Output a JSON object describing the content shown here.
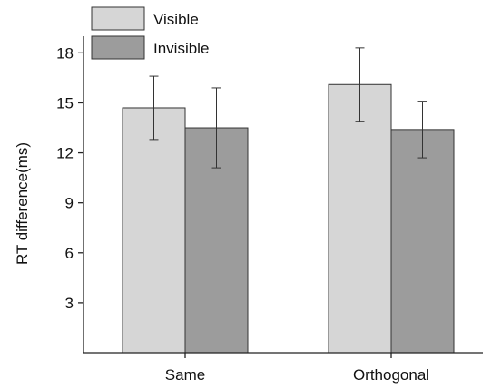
{
  "chart_data": {
    "type": "bar",
    "categories": [
      "Same",
      "Orthogonal"
    ],
    "series": [
      {
        "name": "Visible",
        "color": "#d6d6d6",
        "values": [
          14.7,
          16.1
        ],
        "error": [
          1.9,
          2.2
        ]
      },
      {
        "name": "Invisible",
        "color": "#9c9c9c",
        "values": [
          13.5,
          13.4
        ],
        "error": [
          2.4,
          1.7
        ]
      }
    ],
    "title": "",
    "xlabel": "",
    "ylabel": "RT difference(ms)",
    "ylim": [
      0,
      19
    ],
    "yticks": [
      3,
      6,
      9,
      12,
      15,
      18
    ],
    "legend": "top-left",
    "grid": false
  }
}
